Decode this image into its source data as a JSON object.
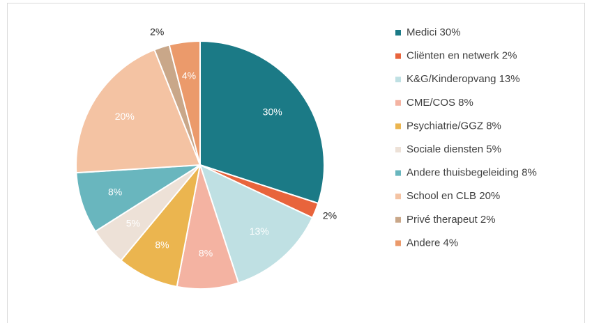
{
  "chart_data": {
    "type": "pie",
    "categories": [
      "Medici 30%",
      "Cliënten en netwerk 2%",
      "K&G/Kinderopvang 13%",
      "CME/COS 8%",
      "Psychiatrie/GGZ 8%",
      "Sociale diensten 5%",
      "Andere thuisbegeleiding 8%",
      "School en CLB 20%",
      "Privé therapeut 2%",
      "Andere 4%"
    ],
    "values": [
      30,
      2,
      13,
      8,
      8,
      5,
      8,
      20,
      2,
      4
    ],
    "value_labels": [
      "30%",
      "2%",
      "13%",
      "8%",
      "8%",
      "5%",
      "8%",
      "20%",
      "2%",
      "4%"
    ],
    "colors": [
      "#1b7a86",
      "#e8643c",
      "#bfe0e3",
      "#f4b3a2",
      "#ebb54f",
      "#ede1d7",
      "#69b6be",
      "#f4c3a3",
      "#c9a789",
      "#eb9a6b"
    ],
    "legend": "right"
  }
}
